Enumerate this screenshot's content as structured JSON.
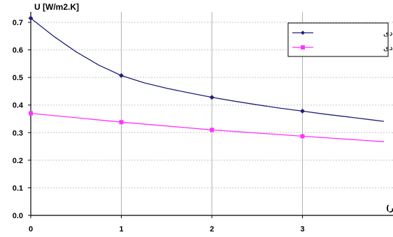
{
  "chart_data": {
    "type": "line",
    "ylabel": "U [W/m2.K]",
    "xlabel": "ضخامت عایق حرارتی تکمیلی (سانتیمتر)",
    "xlim": [
      0,
      3.9
    ],
    "ylim": [
      0,
      0.75
    ],
    "x_ticks": [
      "0",
      "1",
      "2",
      "3"
    ],
    "y_ticks": [
      "0.0",
      "0.1",
      "0.2",
      "0.3",
      "0.4",
      "0.5",
      "0.6",
      "0.7"
    ],
    "grid": true,
    "legend_position": "top-right",
    "series": [
      {
        "name": "با وادار فولادی",
        "color": "#1f1f7a",
        "marker": "diamond",
        "points": [
          [
            0,
            0.715
          ],
          [
            1,
            0.507
          ],
          [
            2,
            0.428
          ],
          [
            3,
            0.378
          ]
        ],
        "curve": [
          [
            0,
            0.715
          ],
          [
            0.25,
            0.65
          ],
          [
            0.5,
            0.593
          ],
          [
            0.75,
            0.545
          ],
          [
            1,
            0.507
          ],
          [
            1.25,
            0.481
          ],
          [
            1.5,
            0.461
          ],
          [
            1.75,
            0.444
          ],
          [
            2,
            0.428
          ],
          [
            2.25,
            0.414
          ],
          [
            2.5,
            0.401
          ],
          [
            2.75,
            0.389
          ],
          [
            3,
            0.378
          ],
          [
            3.25,
            0.367
          ],
          [
            3.5,
            0.357
          ],
          [
            3.75,
            0.347
          ],
          [
            3.9,
            0.341
          ]
        ]
      },
      {
        "name": "بدون وادار فولادی",
        "color": "#ff33ff",
        "marker": "square",
        "points": [
          [
            0,
            0.37
          ],
          [
            1,
            0.338
          ],
          [
            2,
            0.31
          ],
          [
            3,
            0.287
          ]
        ],
        "curve": [
          [
            0,
            0.37
          ],
          [
            1,
            0.338
          ],
          [
            2,
            0.31
          ],
          [
            3,
            0.287
          ],
          [
            3.9,
            0.267
          ]
        ]
      }
    ]
  }
}
